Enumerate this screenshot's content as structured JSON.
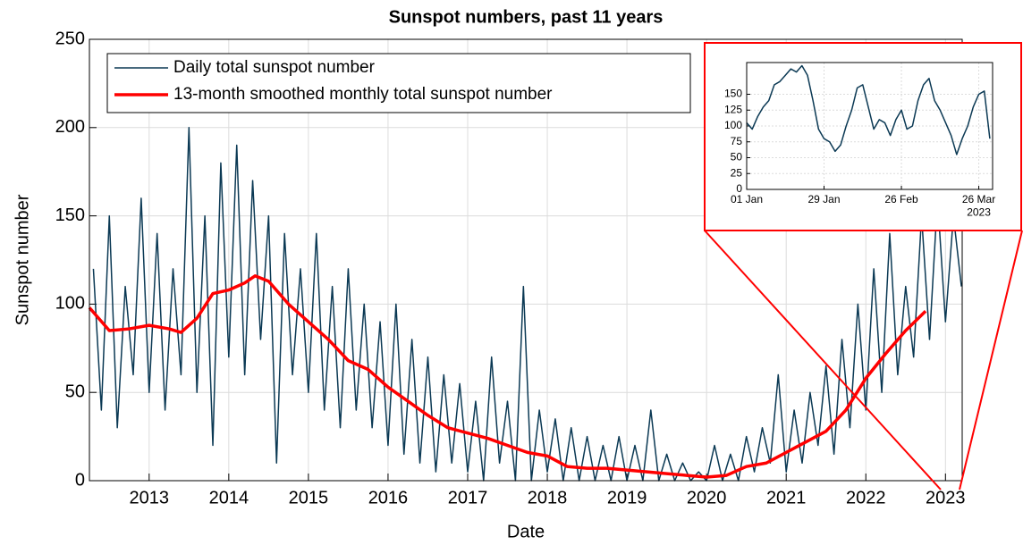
{
  "chart_data": [
    {
      "type": "line",
      "title": "Sunspot numbers, past 11 years",
      "xlabel": "Date",
      "ylabel": "Sunspot number",
      "xlim": [
        2012.25,
        2023.21
      ],
      "xticks": [
        2013,
        2014,
        2015,
        2016,
        2017,
        2018,
        2019,
        2020,
        2021,
        2022,
        2023
      ],
      "ylim": [
        0,
        250
      ],
      "yticks": [
        0,
        50,
        100,
        150,
        200,
        250
      ],
      "grid": true,
      "legend": "upper left",
      "series": [
        {
          "name": "Daily total sunspot number",
          "color": "#0b3954",
          "width": 1.5,
          "x": [
            2012.3,
            2012.4,
            2012.5,
            2012.6,
            2012.7,
            2012.8,
            2012.9,
            2013.0,
            2013.1,
            2013.2,
            2013.3,
            2013.4,
            2013.5,
            2013.6,
            2013.7,
            2013.8,
            2013.9,
            2014.0,
            2014.1,
            2014.2,
            2014.3,
            2014.4,
            2014.5,
            2014.6,
            2014.7,
            2014.8,
            2014.9,
            2015.0,
            2015.1,
            2015.2,
            2015.3,
            2015.4,
            2015.5,
            2015.6,
            2015.7,
            2015.8,
            2015.9,
            2016.0,
            2016.1,
            2016.2,
            2016.3,
            2016.4,
            2016.5,
            2016.6,
            2016.7,
            2016.8,
            2016.9,
            2017.0,
            2017.1,
            2017.2,
            2017.3,
            2017.4,
            2017.5,
            2017.6,
            2017.7,
            2017.8,
            2017.9,
            2018.0,
            2018.1,
            2018.2,
            2018.3,
            2018.4,
            2018.5,
            2018.6,
            2018.7,
            2018.8,
            2018.9,
            2019.0,
            2019.1,
            2019.2,
            2019.3,
            2019.4,
            2019.5,
            2019.6,
            2019.7,
            2019.8,
            2019.9,
            2020.0,
            2020.1,
            2020.2,
            2020.3,
            2020.4,
            2020.5,
            2020.6,
            2020.7,
            2020.8,
            2020.9,
            2021.0,
            2021.1,
            2021.2,
            2021.3,
            2021.4,
            2021.5,
            2021.6,
            2021.7,
            2021.8,
            2021.9,
            2022.0,
            2022.1,
            2022.2,
            2022.3,
            2022.4,
            2022.5,
            2022.6,
            2022.7,
            2022.8,
            2022.9,
            2023.0,
            2023.1,
            2023.2
          ],
          "values": [
            120,
            40,
            150,
            30,
            110,
            60,
            160,
            50,
            140,
            40,
            120,
            60,
            200,
            50,
            150,
            20,
            180,
            70,
            190,
            60,
            170,
            80,
            150,
            10,
            140,
            60,
            120,
            50,
            140,
            40,
            110,
            30,
            120,
            40,
            100,
            30,
            90,
            20,
            100,
            15,
            80,
            10,
            70,
            5,
            60,
            10,
            55,
            5,
            45,
            0,
            70,
            10,
            45,
            0,
            110,
            0,
            40,
            5,
            35,
            0,
            30,
            0,
            25,
            0,
            20,
            0,
            25,
            0,
            20,
            0,
            40,
            0,
            15,
            0,
            10,
            0,
            5,
            0,
            20,
            0,
            15,
            0,
            25,
            5,
            30,
            10,
            60,
            5,
            40,
            10,
            50,
            20,
            65,
            15,
            80,
            30,
            100,
            40,
            120,
            50,
            140,
            60,
            110,
            70,
            150,
            80,
            160,
            90,
            150,
            110
          ]
        },
        {
          "name": "13-month smoothed monthly total sunspot number",
          "color": "#ff0000",
          "width": 3.5,
          "x": [
            2012.25,
            2012.5,
            2012.75,
            2013.0,
            2013.25,
            2013.4,
            2013.6,
            2013.8,
            2014.0,
            2014.2,
            2014.33,
            2014.5,
            2014.75,
            2015.0,
            2015.25,
            2015.5,
            2015.75,
            2016.0,
            2016.25,
            2016.5,
            2016.75,
            2017.0,
            2017.25,
            2017.5,
            2017.75,
            2018.0,
            2018.25,
            2018.5,
            2018.75,
            2019.0,
            2019.25,
            2019.5,
            2019.75,
            2020.0,
            2020.25,
            2020.5,
            2020.75,
            2021.0,
            2021.25,
            2021.5,
            2021.75,
            2022.0,
            2022.25,
            2022.5,
            2022.75
          ],
          "values": [
            98,
            85,
            86,
            88,
            86,
            84,
            92,
            106,
            108,
            112,
            116,
            113,
            100,
            90,
            80,
            68,
            63,
            53,
            45,
            37,
            30,
            27,
            24,
            20,
            16,
            14,
            8,
            7,
            7,
            6,
            5,
            4,
            3,
            2,
            3,
            8,
            10,
            16,
            22,
            28,
            40,
            58,
            72,
            85,
            96
          ]
        }
      ]
    },
    {
      "type": "line",
      "xlabel": "2023",
      "xlim": [
        1,
        90
      ],
      "xticks": [
        {
          "value": 1,
          "label": "01 Jan"
        },
        {
          "value": 29,
          "label": "29 Jan"
        },
        {
          "value": 57,
          "label": "26 Feb"
        },
        {
          "value": 85,
          "label": "26 Mar"
        }
      ],
      "ylim": [
        0,
        200
      ],
      "yticks": [
        0,
        25,
        50,
        75,
        100,
        125,
        150
      ],
      "grid": true,
      "series": [
        {
          "color": "#0b3954",
          "width": 1.5,
          "x": [
            1,
            3,
            5,
            7,
            9,
            11,
            13,
            15,
            17,
            19,
            21,
            23,
            25,
            27,
            29,
            31,
            33,
            35,
            37,
            39,
            41,
            43,
            45,
            47,
            49,
            51,
            53,
            55,
            57,
            59,
            61,
            63,
            65,
            67,
            69,
            71,
            73,
            75,
            77,
            79,
            81,
            83,
            85,
            87,
            89
          ],
          "values": [
            105,
            95,
            115,
            130,
            140,
            165,
            170,
            180,
            190,
            185,
            195,
            180,
            140,
            95,
            80,
            75,
            60,
            70,
            100,
            125,
            160,
            165,
            130,
            95,
            110,
            105,
            85,
            110,
            125,
            95,
            100,
            140,
            165,
            175,
            140,
            125,
            105,
            85,
            55,
            80,
            100,
            130,
            150,
            155,
            80
          ]
        }
      ]
    }
  ]
}
